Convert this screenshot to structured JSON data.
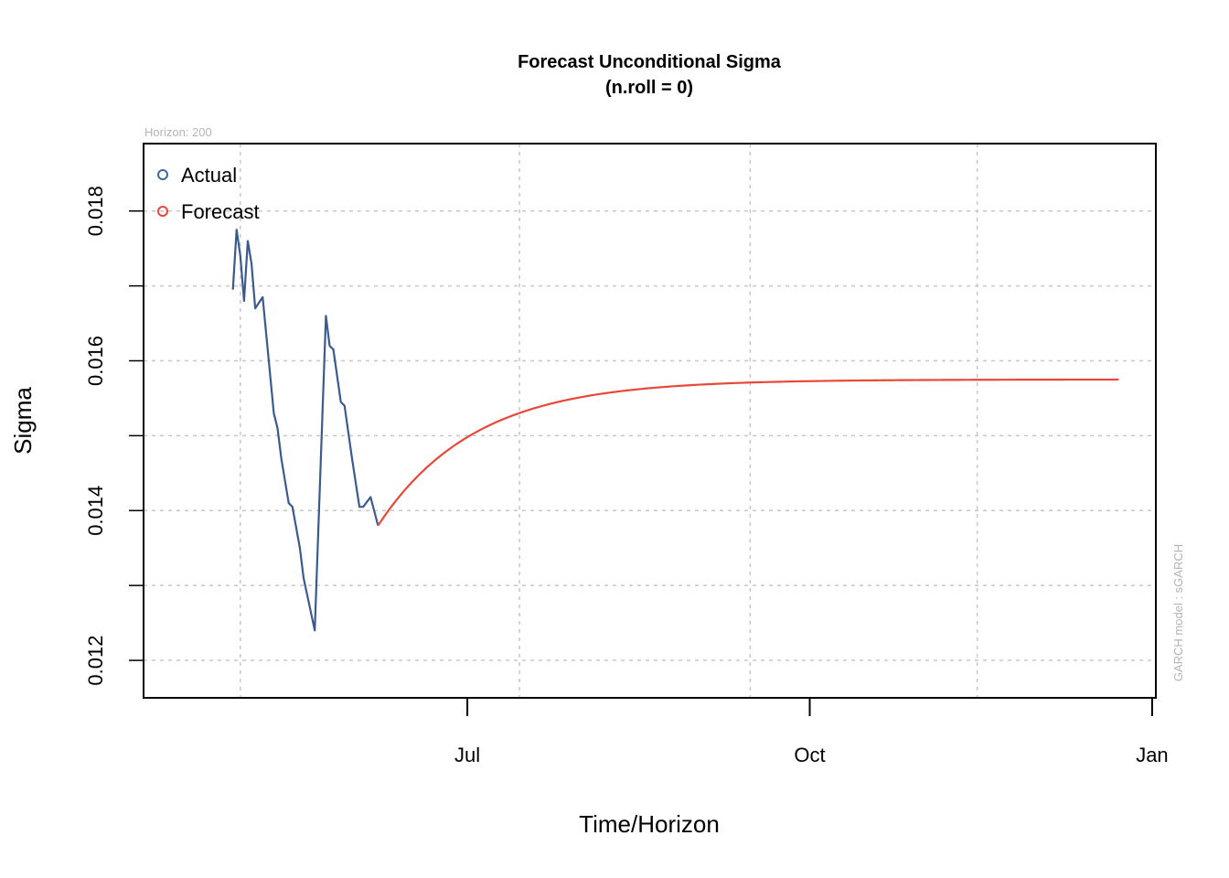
{
  "chart_data": {
    "type": "line",
    "title": "Forecast Unconditional Sigma",
    "subtitle": "(n.roll = 0)",
    "xlabel": "Time/Horizon",
    "ylabel": "Sigma",
    "horizon_note": "Horizon: 200",
    "model_note": "GARCH model :  sGARCH",
    "x_ticks": [
      {
        "label": "Jul",
        "date": "2024-07-01"
      },
      {
        "label": "Oct",
        "date": "2024-10-01"
      },
      {
        "label": "Jan",
        "date": "2025-01-01"
      }
    ],
    "x_grid_dates": [
      "2024-05-01",
      "2024-07-15",
      "2024-09-15",
      "2024-11-15"
    ],
    "y_ticks": [
      {
        "label": "0.012",
        "value": 0.012
      },
      {
        "label": "0.014",
        "value": 0.014
      },
      {
        "label": "0.016",
        "value": 0.016
      },
      {
        "label": "0.018",
        "value": 0.018
      }
    ],
    "y_grid": [
      0.012,
      0.013,
      0.014,
      0.015,
      0.016,
      0.017,
      0.018
    ],
    "ylim": [
      0.0115,
      0.0189
    ],
    "xlim": [
      "2024-04-05",
      "2025-01-02"
    ],
    "legend": {
      "position": "top-left",
      "entries": [
        {
          "label": "Actual",
          "color": "#3b6a9c"
        },
        {
          "label": "Forecast",
          "color": "#e8483a"
        }
      ]
    },
    "series": [
      {
        "name": "Actual",
        "color": "#3b5a8e",
        "points": [
          {
            "x": "2024-04-29",
            "y": 0.01695
          },
          {
            "x": "2024-04-30",
            "y": 0.01775
          },
          {
            "x": "2024-05-01",
            "y": 0.0174
          },
          {
            "x": "2024-05-02",
            "y": 0.0168
          },
          {
            "x": "2024-05-03",
            "y": 0.0176
          },
          {
            "x": "2024-05-04",
            "y": 0.0173
          },
          {
            "x": "2024-05-05",
            "y": 0.0167
          },
          {
            "x": "2024-05-07",
            "y": 0.01685
          },
          {
            "x": "2024-05-10",
            "y": 0.0153
          },
          {
            "x": "2024-05-11",
            "y": 0.0151
          },
          {
            "x": "2024-05-12",
            "y": 0.0147
          },
          {
            "x": "2024-05-14",
            "y": 0.0141
          },
          {
            "x": "2024-05-15",
            "y": 0.01405
          },
          {
            "x": "2024-05-17",
            "y": 0.0135
          },
          {
            "x": "2024-05-18",
            "y": 0.0131
          },
          {
            "x": "2024-05-21",
            "y": 0.0124
          },
          {
            "x": "2024-05-24",
            "y": 0.0166
          },
          {
            "x": "2024-05-25",
            "y": 0.0162
          },
          {
            "x": "2024-05-26",
            "y": 0.01615
          },
          {
            "x": "2024-05-28",
            "y": 0.01545
          },
          {
            "x": "2024-05-29",
            "y": 0.0154
          },
          {
            "x": "2024-05-31",
            "y": 0.0147
          },
          {
            "x": "2024-06-02",
            "y": 0.01405
          },
          {
            "x": "2024-06-03",
            "y": 0.01405
          },
          {
            "x": "2024-06-05",
            "y": 0.01418
          },
          {
            "x": "2024-06-07",
            "y": 0.0138
          }
        ]
      },
      {
        "name": "Forecast",
        "color": "#e8483a",
        "model": {
          "start_date": "2024-06-07",
          "end_date": "2024-12-23",
          "start_value": 0.0138,
          "long_run_value": 0.01575,
          "decay_per_day": 0.962
        }
      }
    ]
  }
}
